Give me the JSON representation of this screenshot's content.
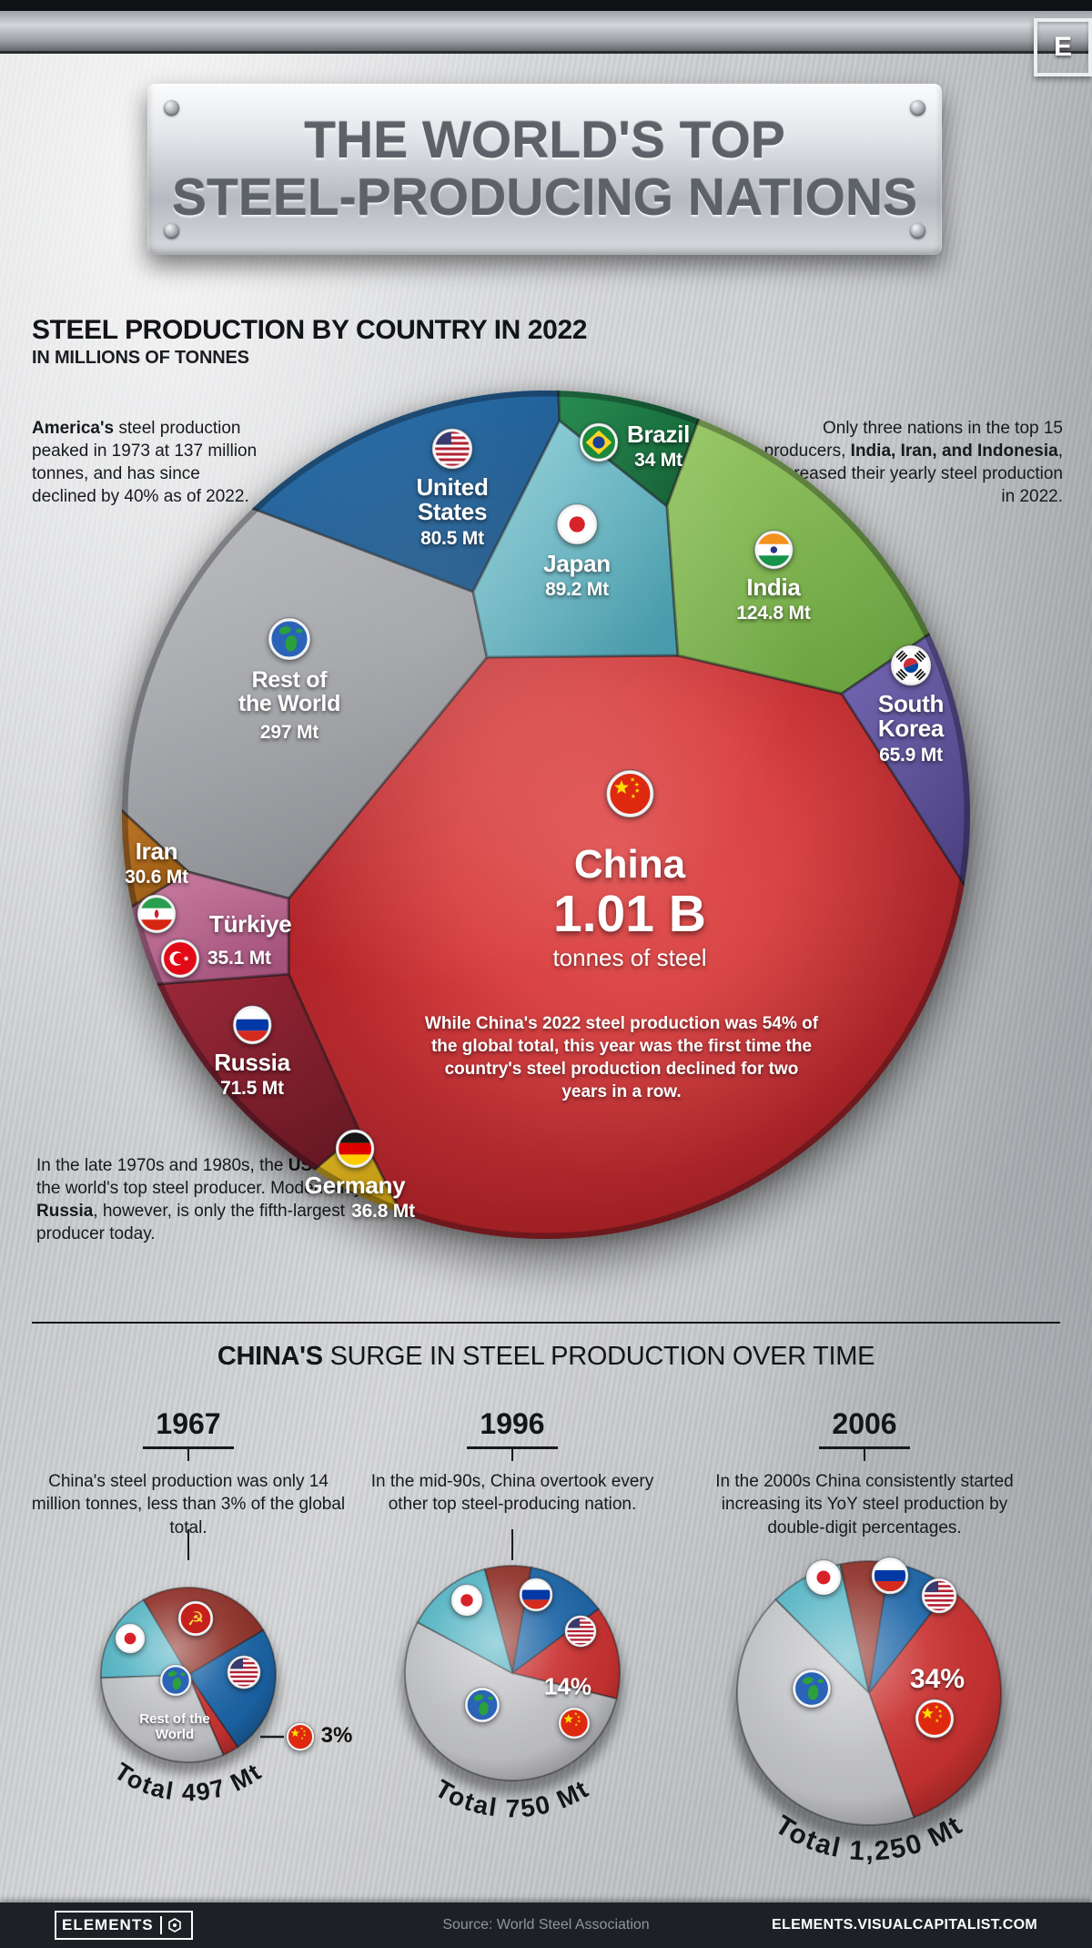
{
  "header": {
    "logo_letter": "E",
    "title_line1": "THE WORLD'S TOP",
    "title_line2": "STEEL-PRODUCING NATIONS"
  },
  "section1": {
    "heading": "STEEL PRODUCTION BY COUNTRY IN 2022",
    "subheading": "IN MILLIONS OF TONNES",
    "note_left": {
      "bold": "America's",
      "rest": " steel production peaked in 1973 at 137 million tonnes, and has since declined by 40% as of 2022."
    },
    "note_right": {
      "pre": "Only three nations in the top 15 producers, ",
      "bold": "India, Iran, and Indonesia",
      "post": ", increased their yearly steel production in 2022."
    },
    "note_bottom": {
      "pre": "In the late 1970s and 1980s, the ",
      "bold1": "USSR",
      "mid": " was the world's top steel producer. Modern-day ",
      "bold2": "Russia",
      "post": ", however, is only the fifth-largest producer today."
    }
  },
  "section2": {
    "heading_bold": "CHINA'S",
    "heading_rest": " SURGE IN STEEL PRODUCTION OVER TIME",
    "timeline": [
      {
        "year": "1967",
        "text": "China's steel production was only 14 million tonnes, less than 3% of the global total."
      },
      {
        "year": "1996",
        "text": "In the mid-90s, China overtook every other top steel-producing nation."
      },
      {
        "year": "2006",
        "text": "In the 2000s China consistently started increasing its YoY steel production by double-digit percentages."
      }
    ]
  },
  "chart_data": [
    {
      "type": "pie",
      "style": "voronoi-area-proportional",
      "title": "Steel production by country in 2022",
      "unit": "millions of tonnes",
      "entries": [
        {
          "name": "China",
          "value": "1.01 B",
          "sub": "tonnes of steel",
          "value_mt": 1010,
          "share_of_global": "54%",
          "color": "#d94343",
          "color2": "#a31d22",
          "note": "While China's 2022 steel production was 54% of the global total, this year was the first time the country's steel production declined for two years in a row."
        },
        {
          "name": "Rest of the World",
          "value": "297 Mt",
          "value_mt": 297,
          "color": "#cdced2",
          "color2": "#828489"
        },
        {
          "name": "United States",
          "value": "80.5 Mt",
          "value_mt": 80.5,
          "color": "#2673b5",
          "color2": "#0d4a80"
        },
        {
          "name": "Japan",
          "value": "89.2 Mt",
          "value_mt": 89.2,
          "color": "#93d4dc",
          "color2": "#3d95a6"
        },
        {
          "name": "Brazil",
          "value": "34 Mt",
          "value_mt": 34,
          "color": "#22914f",
          "color2": "#0c5a2e"
        },
        {
          "name": "India",
          "value": "124.8 Mt",
          "value_mt": 124.8,
          "color": "#a0ce6d",
          "color2": "#639d39"
        },
        {
          "name": "South Korea",
          "value": "65.9 Mt",
          "value_mt": 65.9,
          "color": "#786ab8",
          "color2": "#463a7e"
        },
        {
          "name": "Germany",
          "value": "36.8 Mt",
          "value_mt": 36.8,
          "color": "#ecc32a",
          "color2": "#b78a04"
        },
        {
          "name": "Russia",
          "value": "71.5 Mt",
          "value_mt": 71.5,
          "color": "#a02738",
          "color2": "#64121f"
        },
        {
          "name": "Türkiye",
          "value": "35.1 Mt",
          "value_mt": 35.1,
          "color": "#d083a6",
          "color2": "#a2507a"
        },
        {
          "name": "Iran",
          "value": "30.6 Mt",
          "value_mt": 30.6,
          "color": "#d28433",
          "color2": "#93570f"
        }
      ]
    },
    {
      "type": "pie",
      "year": "1967",
      "total_label": "Total 497 Mt",
      "total_mt": 497,
      "segments": [
        {
          "name": "Japan",
          "percent": 17,
          "color": "#56b4c4"
        },
        {
          "name": "USSR",
          "percent": 25,
          "color": "#8e3129"
        },
        {
          "name": "United States",
          "percent": 24,
          "color": "#1b64a6"
        },
        {
          "name": "China",
          "percent": 3,
          "label": "3%",
          "color": "#c93231"
        },
        {
          "name": "Rest of the World",
          "percent": 31,
          "color": "#c3c4c8"
        }
      ]
    },
    {
      "type": "pie",
      "year": "1996",
      "total_label": "Total 750 Mt",
      "total_mt": 750,
      "segments": [
        {
          "name": "Russia",
          "percent": 7,
          "color": "#8e3129"
        },
        {
          "name": "United States",
          "percent": 12,
          "color": "#1b64a6"
        },
        {
          "name": "China",
          "percent": 14,
          "label": "14%",
          "color": "#c93231"
        },
        {
          "name": "Rest of the World",
          "percent": 54,
          "color": "#c3c4c8"
        },
        {
          "name": "Japan",
          "percent": 13,
          "color": "#56b4c4"
        }
      ]
    },
    {
      "type": "pie",
      "year": "2006",
      "total_label": "Total 1,250 Mt",
      "total_mt": 1250,
      "segments": [
        {
          "name": "Japan",
          "percent": 9,
          "color": "#56b4c4"
        },
        {
          "name": "Russia",
          "percent": 6,
          "color": "#8e3129"
        },
        {
          "name": "United States",
          "percent": 8,
          "color": "#1b64a6"
        },
        {
          "name": "China",
          "percent": 34,
          "label": "34%",
          "color": "#c93231"
        },
        {
          "name": "Rest of the World",
          "percent": 43,
          "color": "#c3c4c8"
        }
      ]
    }
  ],
  "footer": {
    "logo": "ELEMENTS",
    "source": "Source: World Steel Association",
    "url": "ELEMENTS.VISUALCAPITALIST.COM"
  }
}
